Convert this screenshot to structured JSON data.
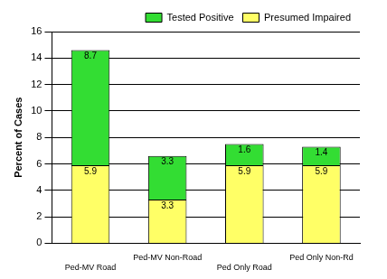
{
  "chart_data": {
    "type": "bar",
    "stacked": true,
    "y_label": "Percent of Cases",
    "categories": [
      "Ped-MV Road",
      "Ped-MV Non-Road",
      "Ped Only Road",
      "Ped Only Non-Rd"
    ],
    "series": [
      {
        "name": "Presumed Impaired",
        "color": "#ffff66",
        "values": [
          5.9,
          3.3,
          5.9,
          5.9
        ]
      },
      {
        "name": "Tested Positive",
        "color": "#33dd33",
        "values": [
          8.7,
          3.3,
          1.6,
          1.4
        ]
      }
    ],
    "ylim": [
      0,
      16
    ],
    "yticks": [
      0,
      2,
      4,
      6,
      8,
      10,
      12,
      14,
      16
    ],
    "grid": true,
    "legend": "top-right",
    "data_labels": true
  }
}
